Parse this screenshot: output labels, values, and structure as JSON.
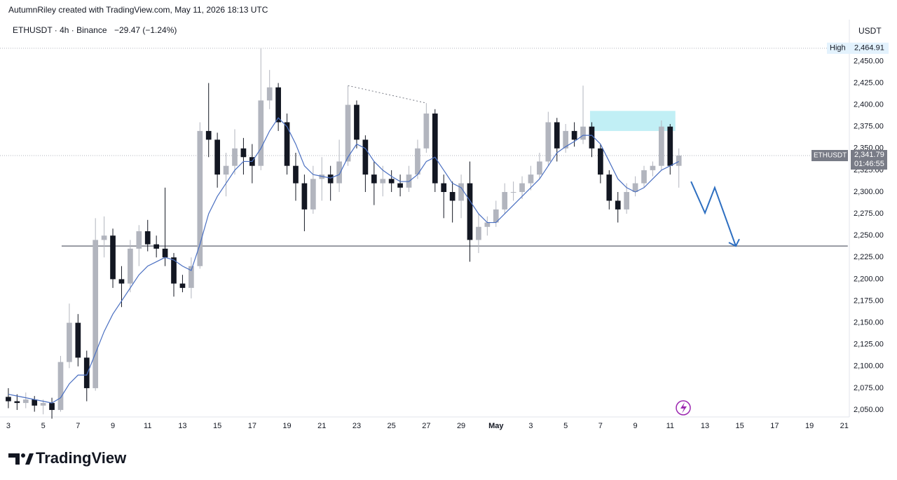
{
  "chart_data": {
    "type": "candlestick",
    "caption": "AutumnRiley created with TradingView.com, May 11, 2026 18:13 UTC",
    "symbol_line": "ETHUSDT · 4h · Binance",
    "change": "−29.47 (−1.24%)",
    "y_unit": "USDT",
    "brand": "TradingView",
    "up_color": "#b2b5be",
    "down_color": "#131722",
    "grid": false,
    "x": [
      0,
      0.5,
      1,
      1.5,
      2,
      2.5,
      3,
      3.5,
      4,
      4.5,
      5,
      5.5,
      6,
      6.5,
      7,
      7.5,
      8,
      8.5,
      9,
      9.5,
      10,
      10.5,
      11,
      11.5,
      12,
      12.5,
      13,
      13.5,
      14,
      14.5,
      15,
      15.5,
      16,
      16.5,
      17,
      17.5,
      18,
      18.5,
      19,
      19.5,
      20,
      20.5,
      21,
      21.5,
      22,
      22.5,
      23,
      23.5,
      24,
      24.5,
      25,
      25.5,
      26,
      26.5,
      27,
      27.5,
      28,
      28.5,
      29,
      29.5,
      30,
      30.5,
      31,
      31.5,
      32,
      32.5,
      33,
      33.5,
      34,
      34.5,
      35,
      35.5,
      36,
      36.5,
      37,
      37.5,
      38,
      38.5
    ],
    "open": [
      2065,
      2060,
      2058,
      2062,
      2055,
      2058,
      2050,
      2105,
      2150,
      2110,
      2075,
      2245,
      2250,
      2200,
      2195,
      2235,
      2255,
      2240,
      2235,
      2225,
      2195,
      2190,
      2215,
      2370,
      2360,
      2320,
      2330,
      2350,
      2340,
      2330,
      2405,
      2420,
      2380,
      2330,
      2310,
      2280,
      2315,
      2320,
      2310,
      2335,
      2400,
      2360,
      2320,
      2310,
      2315,
      2310,
      2305,
      2320,
      2350,
      2390,
      2310,
      2300,
      2290,
      2310,
      2245,
      2260,
      2265,
      2280,
      2300,
      2300,
      2310,
      2320,
      2335,
      2380,
      2350,
      2370,
      2360,
      2375,
      2350,
      2320,
      2290,
      2280,
      2300,
      2310,
      2325,
      2330,
      2375,
      2330
    ],
    "high": [
      2075,
      2068,
      2070,
      2066,
      2062,
      2064,
      2112,
      2172,
      2160,
      2118,
      2270,
      2272,
      2258,
      2215,
      2245,
      2262,
      2268,
      2250,
      2305,
      2230,
      2205,
      2225,
      2380,
      2425,
      2368,
      2345,
      2372,
      2362,
      2355,
      2465,
      2440,
      2425,
      2390,
      2345,
      2320,
      2330,
      2340,
      2330,
      2360,
      2422,
      2405,
      2365,
      2335,
      2330,
      2325,
      2320,
      2330,
      2360,
      2402,
      2395,
      2320,
      2312,
      2320,
      2335,
      2275,
      2272,
      2290,
      2310,
      2312,
      2318,
      2330,
      2345,
      2392,
      2385,
      2378,
      2380,
      2422,
      2380,
      2355,
      2325,
      2300,
      2310,
      2318,
      2330,
      2335,
      2382,
      2378,
      2350
    ],
    "low": [
      2052,
      2050,
      2052,
      2048,
      2045,
      2040,
      2048,
      2098,
      2100,
      2060,
      2072,
      2225,
      2190,
      2168,
      2185,
      2215,
      2232,
      2225,
      2215,
      2180,
      2185,
      2178,
      2212,
      2340,
      2305,
      2295,
      2320,
      2320,
      2310,
      2325,
      2395,
      2370,
      2320,
      2290,
      2255,
      2275,
      2290,
      2290,
      2300,
      2330,
      2350,
      2300,
      2285,
      2295,
      2300,
      2295,
      2300,
      2315,
      2345,
      2300,
      2270,
      2265,
      2270,
      2220,
      2230,
      2250,
      2260,
      2275,
      2290,
      2292,
      2302,
      2315,
      2330,
      2335,
      2345,
      2352,
      2355,
      2340,
      2310,
      2280,
      2265,
      2275,
      2295,
      2305,
      2318,
      2325,
      2320,
      2305
    ],
    "close": [
      2060,
      2058,
      2062,
      2055,
      2058,
      2050,
      2105,
      2150,
      2110,
      2075,
      2245,
      2250,
      2200,
      2195,
      2235,
      2255,
      2240,
      2235,
      2225,
      2195,
      2190,
      2215,
      2370,
      2360,
      2320,
      2330,
      2350,
      2340,
      2330,
      2405,
      2420,
      2380,
      2330,
      2310,
      2280,
      2315,
      2320,
      2310,
      2335,
      2400,
      2360,
      2320,
      2310,
      2315,
      2310,
      2305,
      2320,
      2350,
      2390,
      2310,
      2300,
      2290,
      2310,
      2245,
      2260,
      2265,
      2280,
      2300,
      2300,
      2310,
      2320,
      2335,
      2380,
      2350,
      2370,
      2360,
      2375,
      2350,
      2320,
      2290,
      2280,
      2300,
      2310,
      2325,
      2330,
      2375,
      2330,
      2341.79
    ],
    "ma": {
      "color": "#4a6fc1",
      "values": [
        2068,
        2066,
        2064,
        2062,
        2060,
        2058,
        2064,
        2080,
        2090,
        2090,
        2115,
        2140,
        2160,
        2175,
        2190,
        2205,
        2215,
        2220,
        2225,
        2222,
        2215,
        2210,
        2240,
        2275,
        2295,
        2310,
        2325,
        2335,
        2335,
        2350,
        2370,
        2385,
        2375,
        2355,
        2330,
        2320,
        2318,
        2316,
        2320,
        2340,
        2355,
        2350,
        2335,
        2325,
        2318,
        2312,
        2312,
        2320,
        2335,
        2340,
        2325,
        2310,
        2305,
        2290,
        2275,
        2265,
        2265,
        2275,
        2285,
        2295,
        2305,
        2315,
        2330,
        2345,
        2352,
        2358,
        2365,
        2365,
        2355,
        2335,
        2315,
        2305,
        2300,
        2305,
        2315,
        2325,
        2330,
        2335
      ]
    },
    "xlim": [
      -0.48,
      48.29
    ],
    "ylim": [
      2042,
      2472
    ],
    "xticks": [
      {
        "value": 0,
        "label": "3"
      },
      {
        "value": 2,
        "label": "5"
      },
      {
        "value": 4,
        "label": "7"
      },
      {
        "value": 6,
        "label": "9"
      },
      {
        "value": 8,
        "label": "11"
      },
      {
        "value": 10,
        "label": "13"
      },
      {
        "value": 12,
        "label": "15"
      },
      {
        "value": 14,
        "label": "17"
      },
      {
        "value": 16,
        "label": "19"
      },
      {
        "value": 18,
        "label": "21"
      },
      {
        "value": 20,
        "label": "23"
      },
      {
        "value": 22,
        "label": "25"
      },
      {
        "value": 24,
        "label": "27"
      },
      {
        "value": 26,
        "label": "29"
      },
      {
        "value": 28,
        "label": "May"
      },
      {
        "value": 30,
        "label": "3"
      },
      {
        "value": 32,
        "label": "5"
      },
      {
        "value": 34,
        "label": "7"
      },
      {
        "value": 36,
        "label": "9"
      },
      {
        "value": 38,
        "label": "11"
      },
      {
        "value": 40,
        "label": "13"
      },
      {
        "value": 42,
        "label": "15"
      },
      {
        "value": 44,
        "label": "17"
      },
      {
        "value": 46,
        "label": "19"
      },
      {
        "value": 48,
        "label": "21"
      }
    ],
    "yticks": [
      {
        "value": 2050,
        "label": "2,050.00"
      },
      {
        "value": 2075,
        "label": "2,075.00"
      },
      {
        "value": 2100,
        "label": "2,100.00"
      },
      {
        "value": 2125,
        "label": "2,125.00"
      },
      {
        "value": 2150,
        "label": "2,150.00"
      },
      {
        "value": 2175,
        "label": "2,175.00"
      },
      {
        "value": 2200,
        "label": "2,200.00"
      },
      {
        "value": 2225,
        "label": "2,225.00"
      },
      {
        "value": 2250,
        "label": "2,250.00"
      },
      {
        "value": 2275,
        "label": "2,275.00"
      },
      {
        "value": 2300,
        "label": "2,300.00"
      },
      {
        "value": 2325,
        "label": "2,325.00"
      },
      {
        "value": 2350,
        "label": "2,350.00"
      },
      {
        "value": 2375,
        "label": "2,375.00"
      },
      {
        "value": 2400,
        "label": "2,400.00"
      },
      {
        "value": 2425,
        "label": "2,425.00"
      },
      {
        "value": 2450,
        "label": "2,450.00"
      }
    ],
    "high_marker": {
      "label": "High",
      "price": {
        "value": 2464.91,
        "label": "2,464.91"
      }
    },
    "last_price": {
      "symbol": "ETHUSDT",
      "price": {
        "value": 2341.79,
        "label": "2,341.79"
      },
      "countdown": "01:46:55"
    },
    "drawings": {
      "support": {
        "x": [
          3.06,
          48.2
        ],
        "y": 2238
      },
      "zone": {
        "x": [
          33.4,
          38.3
        ],
        "y": [
          2370,
          2393
        ]
      },
      "trendline": {
        "x": [
          19.5,
          24
        ],
        "y": [
          2422,
          2402
        ]
      },
      "projection": {
        "x": [
          39.2,
          40,
          40.56,
          41.77
        ],
        "y": [
          2312,
          2276,
          2305,
          2238
        ]
      }
    }
  }
}
